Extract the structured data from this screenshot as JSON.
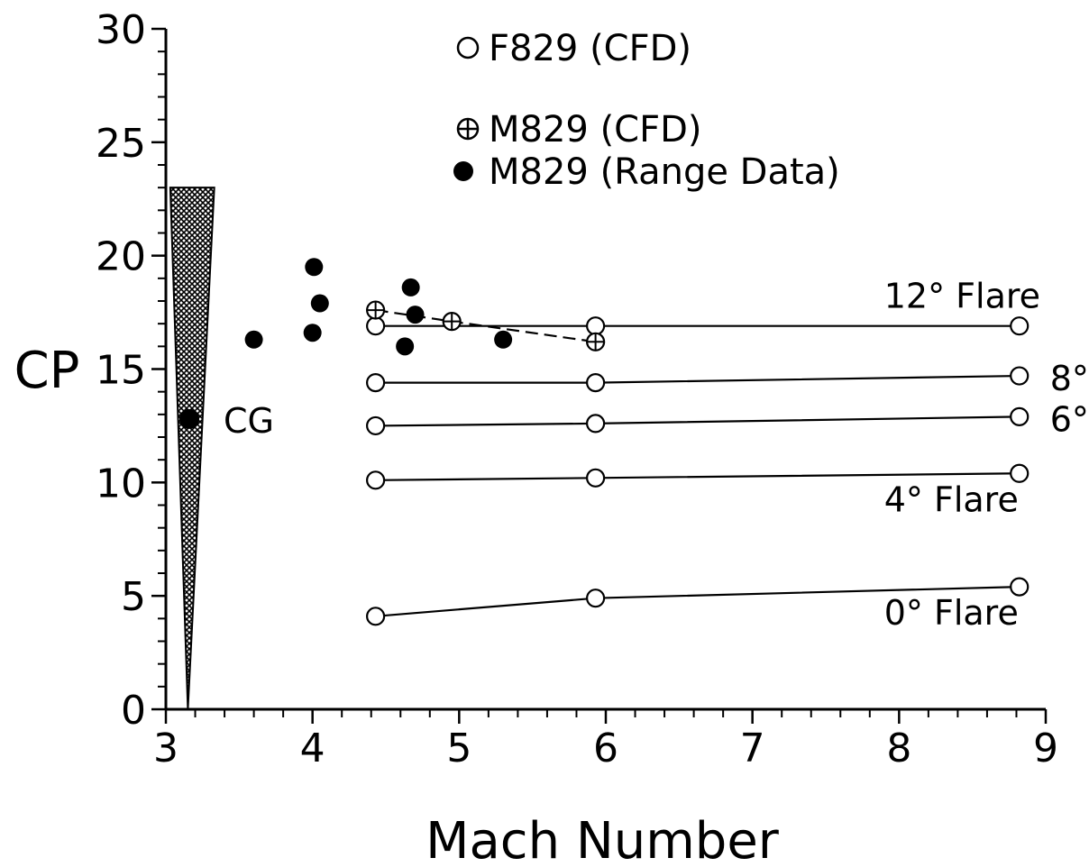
{
  "chart_data": {
    "type": "scatter",
    "title": "",
    "xlabel": "Mach Number",
    "ylabel": "CP",
    "xlim": [
      3,
      9
    ],
    "ylim": [
      0,
      30
    ],
    "xticks": [
      3,
      4,
      5,
      6,
      7,
      8,
      9
    ],
    "yticks": [
      0,
      5,
      10,
      15,
      20,
      25,
      30
    ],
    "grid": false,
    "legend_position": "top",
    "legend": [
      {
        "label": "F829 (CFD)",
        "marker": "open-circle"
      },
      {
        "label": "M829 (CFD)",
        "marker": "crossed-circle"
      },
      {
        "label": "M829 (Range Data)",
        "marker": "filled-circle"
      }
    ],
    "series": [
      {
        "name": "F829 (CFD)",
        "marker": "open-circle",
        "line": "solid",
        "annotation": "0° Flare",
        "x": [
          4.43,
          5.93,
          8.82
        ],
        "y": [
          4.1,
          4.9,
          5.4
        ]
      },
      {
        "name": "F829 (CFD)",
        "marker": "open-circle",
        "line": "solid",
        "annotation": "4° Flare",
        "x": [
          4.43,
          5.93,
          8.82
        ],
        "y": [
          10.1,
          10.2,
          10.4
        ]
      },
      {
        "name": "F829 (CFD)",
        "marker": "open-circle",
        "line": "solid",
        "annotation": "6°",
        "x": [
          4.43,
          5.93,
          8.82
        ],
        "y": [
          12.5,
          12.6,
          12.9
        ]
      },
      {
        "name": "F829 (CFD)",
        "marker": "open-circle",
        "line": "solid",
        "annotation": "8°",
        "x": [
          4.43,
          5.93,
          8.82
        ],
        "y": [
          14.4,
          14.4,
          14.7
        ]
      },
      {
        "name": "F829 (CFD)",
        "marker": "open-circle",
        "line": "solid",
        "annotation": "12° Flare",
        "x": [
          4.43,
          5.93,
          8.82
        ],
        "y": [
          16.9,
          16.9,
          16.9
        ]
      },
      {
        "name": "M829 (CFD)",
        "marker": "crossed-circle",
        "line": "dashed",
        "x": [
          4.43,
          4.95,
          5.93
        ],
        "y": [
          17.6,
          17.1,
          16.2
        ]
      },
      {
        "name": "M829 (Range Data)",
        "marker": "filled-circle",
        "line": "none",
        "x": [
          3.6,
          4.0,
          4.01,
          4.05,
          4.63,
          4.67,
          4.7,
          5.3
        ],
        "y": [
          16.3,
          16.6,
          19.5,
          17.9,
          16.0,
          18.6,
          17.4,
          16.3
        ]
      }
    ],
    "projectile": {
      "x_left": 3.03,
      "x_tip": 3.15,
      "x_right": 3.33,
      "y_tip": 0,
      "y_top": 23
    },
    "cg": {
      "label": "CG",
      "x": 3.16,
      "y": 12.8
    }
  }
}
